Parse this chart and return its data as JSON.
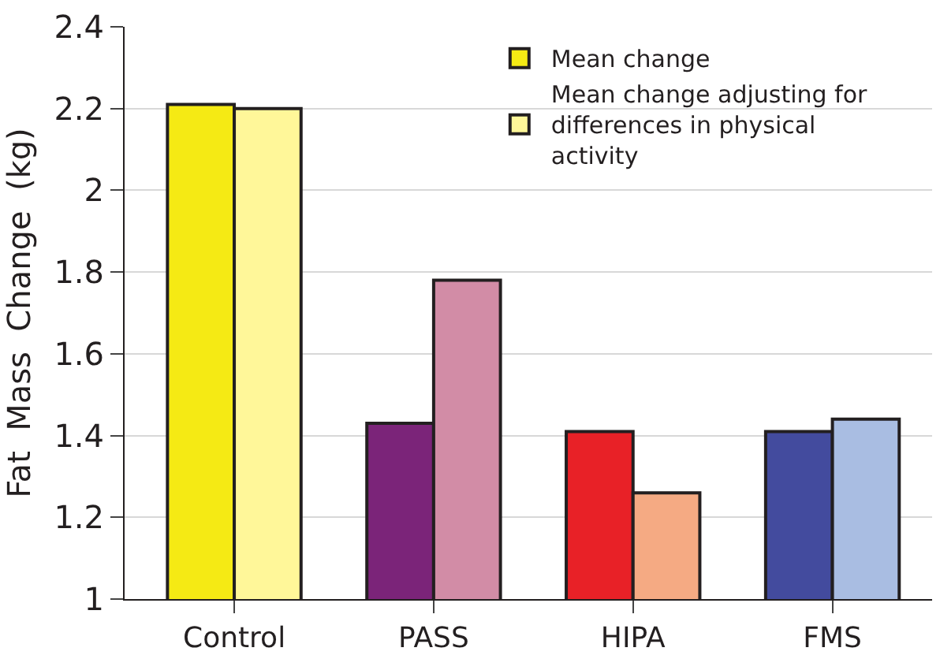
{
  "chart_data": {
    "type": "bar",
    "ylabel": "Fat  Mass  Change  (kg)",
    "categories": [
      "Control",
      "PASS",
      "HIPA",
      "FMS"
    ],
    "series": [
      {
        "name": "Mean change",
        "colors": [
          "#f5ea14",
          "#7b2479",
          "#e82127",
          "#434b9e"
        ],
        "values": [
          2.21,
          1.43,
          1.41,
          1.41
        ]
      },
      {
        "name": "Mean change adjusting for differences in physical activity",
        "colors": [
          "#fff799",
          "#d28ca6",
          "#f5aa83",
          "#a9bde2"
        ],
        "values": [
          2.2,
          1.78,
          1.26,
          1.44
        ]
      }
    ],
    "ylim": [
      1,
      2.4
    ],
    "yticks": [
      1,
      1.2,
      1.4,
      1.6,
      1.8,
      2,
      2.2,
      2.4
    ],
    "grid": "y",
    "legend": "top right"
  }
}
